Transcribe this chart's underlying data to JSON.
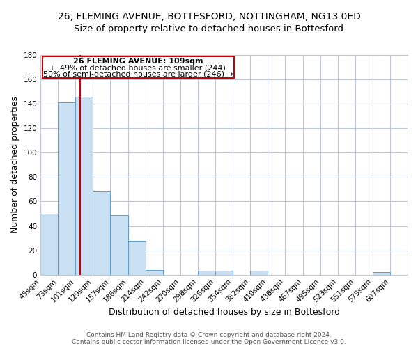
{
  "title": "26, FLEMING AVENUE, BOTTESFORD, NOTTINGHAM, NG13 0ED",
  "subtitle": "Size of property relative to detached houses in Bottesford",
  "xlabel": "Distribution of detached houses by size in Bottesford",
  "ylabel": "Number of detached properties",
  "bar_left_edges": [
    45,
    73,
    101,
    129,
    157,
    186,
    214,
    242,
    270,
    298,
    326,
    354,
    382,
    410,
    438,
    467,
    495,
    523,
    551,
    579
  ],
  "bar_widths": [
    28,
    28,
    28,
    28,
    29,
    28,
    28,
    28,
    28,
    28,
    28,
    28,
    28,
    28,
    29,
    28,
    28,
    28,
    28,
    28
  ],
  "bar_heights": [
    50,
    141,
    146,
    68,
    49,
    28,
    4,
    0,
    0,
    3,
    3,
    0,
    3,
    0,
    0,
    0,
    0,
    0,
    0,
    2
  ],
  "bar_color": "#c9dff2",
  "bar_edge_color": "#5b9bd5",
  "x_tick_labels": [
    "45sqm",
    "73sqm",
    "101sqm",
    "129sqm",
    "157sqm",
    "186sqm",
    "214sqm",
    "242sqm",
    "270sqm",
    "298sqm",
    "326sqm",
    "354sqm",
    "382sqm",
    "410sqm",
    "438sqm",
    "467sqm",
    "495sqm",
    "523sqm",
    "551sqm",
    "579sqm",
    "607sqm"
  ],
  "x_tick_positions": [
    45,
    73,
    101,
    129,
    157,
    186,
    214,
    242,
    270,
    298,
    326,
    354,
    382,
    410,
    438,
    467,
    495,
    523,
    551,
    579,
    607
  ],
  "ylim": [
    0,
    180
  ],
  "yticks": [
    0,
    20,
    40,
    60,
    80,
    100,
    120,
    140,
    160,
    180
  ],
  "xlim": [
    45,
    635
  ],
  "vline_x": 109,
  "vline_color": "#cc0000",
  "annotation_line1": "26 FLEMING AVENUE: 109sqm",
  "annotation_line2": "← 49% of detached houses are smaller (244)",
  "annotation_line3": "50% of semi-detached houses are larger (246) →",
  "footer_line1": "Contains HM Land Registry data © Crown copyright and database right 2024.",
  "footer_line2": "Contains public sector information licensed under the Open Government Licence v3.0.",
  "background_color": "#ffffff",
  "grid_color": "#c0c8d8",
  "title_fontsize": 10,
  "subtitle_fontsize": 9.5,
  "axis_label_fontsize": 9,
  "tick_label_fontsize": 7.5,
  "annotation_fontsize": 8,
  "footer_fontsize": 6.5
}
